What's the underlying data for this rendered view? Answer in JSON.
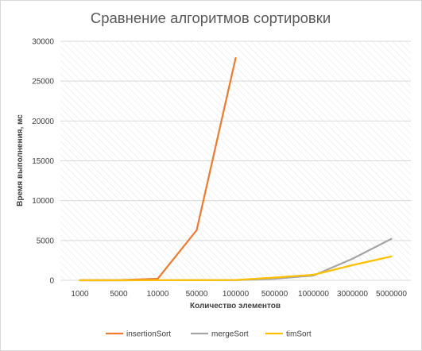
{
  "chart_data": {
    "type": "line",
    "title": "Сравнение алгоритмов сортировки",
    "xlabel": "Количество элементов",
    "ylabel": "Время выполнения, мс",
    "categories": [
      "1000",
      "5000",
      "10000",
      "50000",
      "100000",
      "500000",
      "1000000",
      "3000000",
      "5000000"
    ],
    "ylim": [
      0,
      30000
    ],
    "yticks": [
      "0",
      "5000",
      "10000",
      "15000",
      "20000",
      "25000",
      "30000"
    ],
    "grid": true,
    "legend_position": "bottom",
    "series": [
      {
        "name": "insertionSort",
        "color": "#ed7d31",
        "values": [
          10,
          30,
          200,
          6300,
          27900,
          null,
          null,
          null,
          null
        ]
      },
      {
        "name": "mergeSort",
        "color": "#a5a5a5",
        "values": [
          0,
          0,
          5,
          15,
          30,
          200,
          600,
          2700,
          5200
        ]
      },
      {
        "name": "timSort",
        "color": "#ffc000",
        "values": [
          0,
          0,
          5,
          15,
          40,
          350,
          700,
          1900,
          3000
        ]
      }
    ]
  }
}
